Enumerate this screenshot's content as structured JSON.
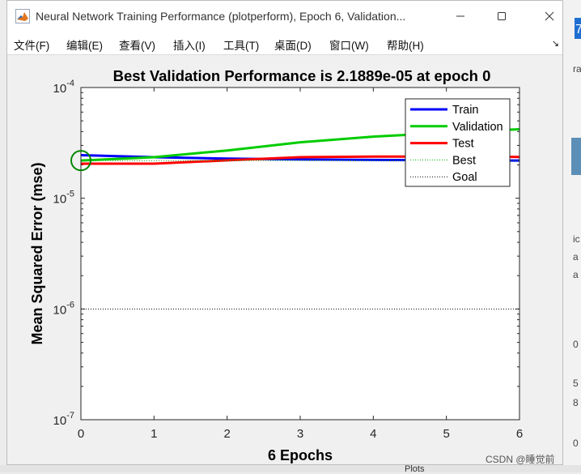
{
  "window": {
    "title": "Neural Network Training Performance (plotperform), Epoch 6, Validation...",
    "controls": {
      "minimize": "minimize",
      "maximize": "maximize",
      "close": "close"
    }
  },
  "menu": [
    {
      "label": "文件(F)"
    },
    {
      "label": "编辑(E)"
    },
    {
      "label": "查看(V)"
    },
    {
      "label": "插入(I)"
    },
    {
      "label": "工具(T)"
    },
    {
      "label": "桌面(D)"
    },
    {
      "label": "窗口(W)"
    },
    {
      "label": "帮助(H)"
    }
  ],
  "menu_corner": "↘",
  "chart_data": {
    "type": "line",
    "title": "Best Validation Performance is 2.1889e-05 at epoch 0",
    "xlabel": "6 Epochs",
    "ylabel": "Mean Squared Error  (mse)",
    "yscale": "log",
    "xlim": [
      0,
      6
    ],
    "ylim": [
      1e-07,
      0.0001
    ],
    "xticks": [
      0,
      1,
      2,
      3,
      4,
      5,
      6
    ],
    "yticks": [
      {
        "value": 1e-07,
        "base": "10",
        "exp": "-7"
      },
      {
        "value": 1e-06,
        "base": "10",
        "exp": "-6"
      },
      {
        "value": 1e-05,
        "base": "10",
        "exp": "-5"
      },
      {
        "value": 0.0001,
        "base": "10",
        "exp": "-4"
      }
    ],
    "grid": false,
    "legend_position": "top-right",
    "x": [
      0,
      1,
      2,
      3,
      4,
      5,
      6
    ],
    "series": [
      {
        "name": "Train",
        "color": "#0000ff",
        "style": "solid",
        "values": [
          2.45e-05,
          2.35e-05,
          2.28e-05,
          2.24e-05,
          2.22e-05,
          2.2e-05,
          2.19e-05
        ]
      },
      {
        "name": "Validation",
        "color": "#00cc00",
        "style": "solid",
        "values": [
          2.19e-05,
          2.35e-05,
          2.7e-05,
          3.2e-05,
          3.6e-05,
          3.9e-05,
          4.2e-05
        ]
      },
      {
        "name": "Test",
        "color": "#ff0000",
        "style": "solid",
        "values": [
          2.05e-05,
          2.05e-05,
          2.2e-05,
          2.35e-05,
          2.38e-05,
          2.38e-05,
          2.36e-05
        ]
      },
      {
        "name": "Best",
        "color": "#00aa00",
        "style": "dotted",
        "values": [
          2.1889e-05,
          2.1889e-05,
          2.1889e-05,
          2.1889e-05,
          2.1889e-05,
          2.1889e-05,
          2.1889e-05
        ]
      },
      {
        "name": "Goal",
        "color": "#000000",
        "style": "dotted",
        "values": [
          1e-06,
          1e-06,
          1e-06,
          1e-06,
          1e-06,
          1e-06,
          1e-06
        ]
      }
    ],
    "best_marker": {
      "epoch": 0,
      "value": 2.1889e-05,
      "color": "#008800"
    }
  },
  "background": {
    "fragments": [
      "7",
      "ra",
      "ic",
      "a",
      "a",
      "0",
      "5",
      "8",
      "0"
    ],
    "bottom_label": "Plots"
  },
  "watermark": "CSDN @睡觉前"
}
